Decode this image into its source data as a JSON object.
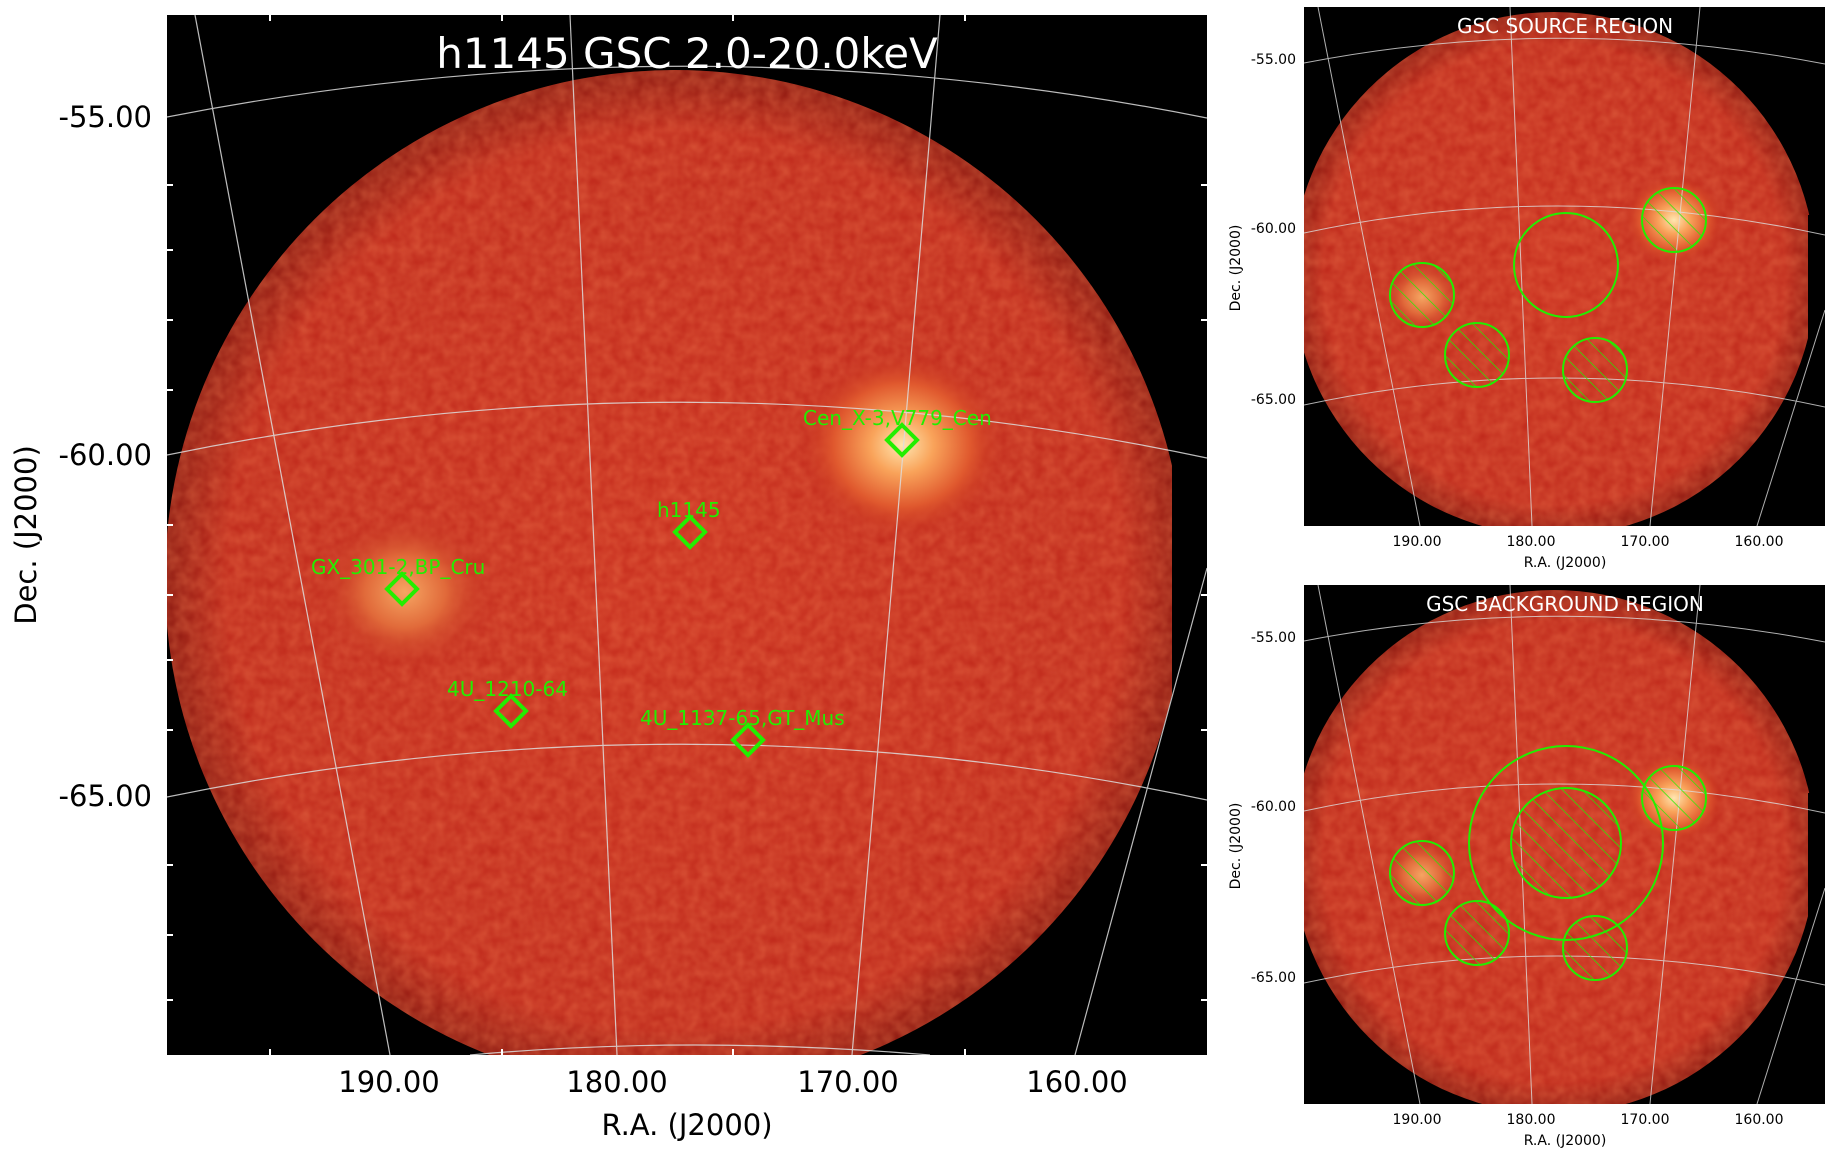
{
  "main": {
    "title": "h1145 GSC 2.0-20.0keV",
    "xlabel": "R.A. (J2000)",
    "ylabel": "Dec. (J2000)",
    "xticks": [
      "190.00",
      "180.00",
      "170.00",
      "160.00"
    ],
    "yticks": [
      "-55.00",
      "-60.00",
      "-65.00"
    ],
    "sources": [
      {
        "label": "Cen_X-3,V779_Cen"
      },
      {
        "label": "h1145"
      },
      {
        "label": "GX_301-2,BP_Cru"
      },
      {
        "label": "4U_1210-64"
      },
      {
        "label": "4U_1137-65,GT_Mus"
      }
    ]
  },
  "source_panel": {
    "title": "GSC SOURCE REGION",
    "xlabel": "R.A. (J2000)",
    "ylabel": "Dec. (J2000)",
    "xticks": [
      "190.00",
      "180.00",
      "170.00",
      "160.00"
    ],
    "yticks": [
      "-55.00",
      "-60.00",
      "-65.00"
    ]
  },
  "background_panel": {
    "title": "GSC BACKGROUND REGION",
    "xlabel": "R.A. (J2000)",
    "ylabel": "Dec. (J2000)",
    "xticks": [
      "190.00",
      "180.00",
      "170.00",
      "160.00"
    ],
    "yticks": [
      "-55.00",
      "-60.00",
      "-65.00"
    ]
  },
  "colors": {
    "marker": "#22ee00",
    "sky": "#c0281c",
    "hotspot": "#ffd9a0",
    "grid": "#dddddd",
    "background": "#000000"
  }
}
